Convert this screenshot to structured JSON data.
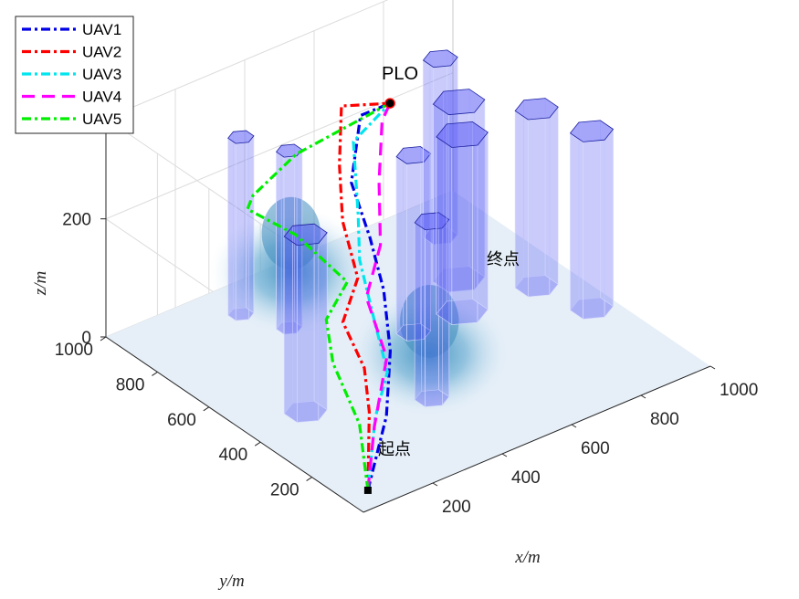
{
  "chart_data": {
    "type": "line",
    "title": "PLO",
    "xlabel": "x/m",
    "ylabel": "y/m",
    "zlabel": "z/m",
    "xlim": [
      0,
      1000
    ],
    "ylim": [
      0,
      1000
    ],
    "zlim": [
      0,
      300
    ],
    "x_ticks": [
      "200",
      "400",
      "600",
      "800",
      "1000"
    ],
    "y_ticks": [
      "200",
      "400",
      "600",
      "800",
      "1000"
    ],
    "z_ticks": [
      "0",
      "200"
    ],
    "start_label": "起点",
    "end_label": "终点",
    "legend_position": "top-left",
    "series": [
      {
        "name": "UAV1",
        "color": "#0000e6",
        "dash": "10 4 3 4",
        "points": [
          [
            50,
            50,
            10
          ],
          [
            200,
            180,
            60
          ],
          [
            300,
            300,
            110
          ],
          [
            370,
            420,
            160
          ],
          [
            420,
            540,
            200
          ],
          [
            470,
            680,
            240
          ],
          [
            600,
            820,
            280
          ],
          [
            700,
            840,
            270
          ]
        ]
      },
      {
        "name": "UAV2",
        "color": "#ff0000",
        "dash": "10 4 3 4",
        "points": [
          [
            50,
            50,
            10
          ],
          [
            180,
            220,
            60
          ],
          [
            240,
            320,
            90
          ],
          [
            260,
            430,
            130
          ],
          [
            340,
            480,
            170
          ],
          [
            400,
            620,
            210
          ],
          [
            480,
            740,
            250
          ],
          [
            560,
            840,
            300
          ],
          [
            700,
            840,
            270
          ]
        ]
      },
      {
        "name": "UAV3",
        "color": "#00e5ee",
        "dash": "10 4 3 4",
        "points": [
          [
            50,
            50,
            10
          ],
          [
            160,
            170,
            70
          ],
          [
            240,
            230,
            110
          ],
          [
            300,
            360,
            140
          ],
          [
            360,
            500,
            190
          ],
          [
            430,
            600,
            220
          ],
          [
            550,
            780,
            260
          ],
          [
            700,
            840,
            270
          ]
        ]
      },
      {
        "name": "UAV4",
        "color": "#ff00ff",
        "dash": "14 8",
        "points": [
          [
            50,
            50,
            10
          ],
          [
            150,
            160,
            60
          ],
          [
            260,
            260,
            120
          ],
          [
            320,
            420,
            160
          ],
          [
            420,
            500,
            200
          ],
          [
            520,
            640,
            240
          ],
          [
            640,
            790,
            270
          ],
          [
            700,
            840,
            270
          ]
        ]
      },
      {
        "name": "UAV5",
        "color": "#00ee00",
        "dash": "10 4 3 4",
        "points": [
          [
            50,
            50,
            10
          ],
          [
            100,
            150,
            80
          ],
          [
            120,
            280,
            140
          ],
          [
            160,
            360,
            180
          ],
          [
            280,
            440,
            190
          ],
          [
            250,
            600,
            230
          ],
          [
            200,
            720,
            250
          ],
          [
            260,
            780,
            240
          ],
          [
            400,
            800,
            270
          ],
          [
            700,
            840,
            270
          ]
        ]
      }
    ],
    "start": [
      50,
      50,
      10
    ],
    "end": [
      700,
      840,
      270
    ],
    "buildings": [
      {
        "cx": 160,
        "cy": 440,
        "r": 50,
        "h": 300
      },
      {
        "cx": 300,
        "cy": 880,
        "r": 30,
        "h": 300
      },
      {
        "cx": 350,
        "cy": 760,
        "r": 30,
        "h": 300
      },
      {
        "cx": 420,
        "cy": 300,
        "r": 40,
        "h": 300
      },
      {
        "cx": 560,
        "cy": 560,
        "r": 40,
        "h": 300
      },
      {
        "cx": 700,
        "cy": 560,
        "r": 60,
        "h": 300
      },
      {
        "cx": 780,
        "cy": 680,
        "r": 60,
        "h": 300
      },
      {
        "cx": 860,
        "cy": 860,
        "r": 40,
        "h": 300
      },
      {
        "cx": 900,
        "cy": 540,
        "r": 50,
        "h": 300
      },
      {
        "cx": 940,
        "cy": 380,
        "r": 50,
        "h": 300
      }
    ],
    "hills": [
      {
        "cx": 400,
        "cy": 820,
        "h": 120,
        "s": 130
      },
      {
        "cx": 450,
        "cy": 350,
        "h": 100,
        "s": 130
      }
    ]
  }
}
